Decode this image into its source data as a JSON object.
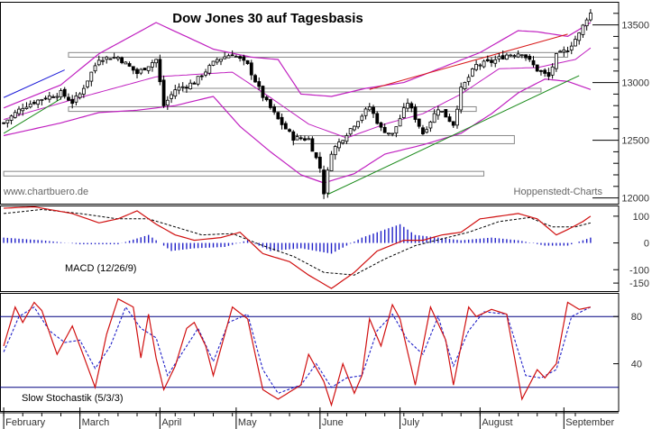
{
  "chart_data": [
    {
      "type": "ohlc",
      "title": "Dow Jones 30 auf Tagesbasis",
      "credits": {
        "left": "www.chartbuero.de",
        "right": "Hoppenstedt-Charts"
      },
      "y_ticks": [
        12000,
        12500,
        13000,
        13500
      ],
      "y_tick_labels": [
        "12000",
        "12500",
        "13000",
        "13500"
      ],
      "ylim": [
        11950,
        13700
      ],
      "months": [
        "February",
        "March",
        "April",
        "May",
        "June",
        "July",
        "August",
        "September"
      ],
      "x_ticks_day": [
        0,
        20,
        41,
        61,
        83,
        104,
        125,
        147
      ],
      "n_days": 155,
      "anchors": [
        [
          0,
          12650
        ],
        [
          5,
          12790
        ],
        [
          10,
          12860
        ],
        [
          15,
          12910
        ],
        [
          18,
          12830
        ],
        [
          20,
          12900
        ],
        [
          25,
          13210
        ],
        [
          30,
          13220
        ],
        [
          35,
          13080
        ],
        [
          40,
          13200
        ],
        [
          42,
          12800
        ],
        [
          45,
          12940
        ],
        [
          50,
          13000
        ],
        [
          56,
          13200
        ],
        [
          60,
          13250
        ],
        [
          64,
          13150
        ],
        [
          68,
          12880
        ],
        [
          72,
          12680
        ],
        [
          76,
          12520
        ],
        [
          80,
          12510
        ],
        [
          83,
          12260
        ],
        [
          84,
          12050
        ],
        [
          86,
          12400
        ],
        [
          90,
          12560
        ],
        [
          93,
          12680
        ],
        [
          96,
          12790
        ],
        [
          99,
          12600
        ],
        [
          102,
          12550
        ],
        [
          106,
          12830
        ],
        [
          110,
          12560
        ],
        [
          114,
          12780
        ],
        [
          118,
          12640
        ],
        [
          120,
          12940
        ],
        [
          124,
          13150
        ],
        [
          128,
          13180
        ],
        [
          132,
          13240
        ],
        [
          136,
          13260
        ],
        [
          140,
          13110
        ],
        [
          143,
          13050
        ],
        [
          145,
          13230
        ],
        [
          148,
          13290
        ],
        [
          151,
          13420
        ],
        [
          153,
          13560
        ],
        [
          154,
          13600
        ]
      ],
      "bollinger_center": [
        [
          0,
          12680
        ],
        [
          20,
          12870
        ],
        [
          40,
          13050
        ],
        [
          60,
          13090
        ],
        [
          70,
          12870
        ],
        [
          80,
          12640
        ],
        [
          90,
          12520
        ],
        [
          100,
          12640
        ],
        [
          110,
          12730
        ],
        [
          120,
          12900
        ],
        [
          130,
          13120
        ],
        [
          140,
          13130
        ],
        [
          150,
          13200
        ],
        [
          154,
          13300
        ]
      ],
      "bollinger_upper": [
        [
          0,
          12780
        ],
        [
          15,
          12980
        ],
        [
          25,
          13250
        ],
        [
          40,
          13520
        ],
        [
          55,
          13290
        ],
        [
          65,
          13220
        ],
        [
          72,
          13200
        ],
        [
          78,
          12900
        ],
        [
          86,
          12880
        ],
        [
          95,
          12950
        ],
        [
          105,
          13000
        ],
        [
          115,
          13130
        ],
        [
          125,
          13260
        ],
        [
          135,
          13450
        ],
        [
          140,
          13440
        ],
        [
          148,
          13400
        ],
        [
          154,
          13520
        ]
      ],
      "bollinger_lower": [
        [
          0,
          12540
        ],
        [
          15,
          12650
        ],
        [
          25,
          12740
        ],
        [
          35,
          12760
        ],
        [
          45,
          12800
        ],
        [
          55,
          12880
        ],
        [
          62,
          12620
        ],
        [
          70,
          12400
        ],
        [
          78,
          12200
        ],
        [
          84,
          12130
        ],
        [
          92,
          12210
        ],
        [
          100,
          12380
        ],
        [
          110,
          12460
        ],
        [
          120,
          12560
        ],
        [
          128,
          12730
        ],
        [
          135,
          12910
        ],
        [
          142,
          13030
        ],
        [
          148,
          13010
        ],
        [
          154,
          12940
        ]
      ],
      "trendlines": [
        {
          "color": "#1a1ad8",
          "points": [
            [
              0,
              12870
            ],
            [
              16,
              13110
            ]
          ]
        },
        {
          "color": "#1a8a1a",
          "points": [
            [
              0,
              12560
            ],
            [
              15,
              12860
            ]
          ]
        },
        {
          "color": "#d81a1a",
          "points": [
            [
              96,
              12940
            ],
            [
              148,
              13420
            ]
          ]
        },
        {
          "color": "#1a8a1a",
          "points": [
            [
              85,
              12030
            ],
            [
              151,
              13060
            ]
          ]
        }
      ],
      "boxes": [
        {
          "d0": 17,
          "d1": 148,
          "v0": 13220,
          "v1": 13260
        },
        {
          "d0": 17,
          "d1": 124,
          "v0": 12750,
          "v1": 12790
        },
        {
          "d0": 47,
          "d1": 141,
          "v0": 12950,
          "v1": 12920
        },
        {
          "d0": 76,
          "d1": 134,
          "v0": 12540,
          "v1": 12470
        },
        {
          "d0": 0,
          "d1": 126,
          "v0": 12230,
          "v1": 12190
        }
      ]
    },
    {
      "type": "line",
      "label": "MACD (12/26/9)",
      "y_ticks": [
        100,
        0,
        -100,
        -150
      ],
      "y_tick_labels": [
        "100",
        "0",
        "-100",
        "-150"
      ],
      "ylim": [
        -180,
        140
      ],
      "macd": [
        [
          0,
          130
        ],
        [
          8,
          135
        ],
        [
          18,
          110
        ],
        [
          25,
          75
        ],
        [
          30,
          90
        ],
        [
          35,
          120
        ],
        [
          40,
          70
        ],
        [
          45,
          30
        ],
        [
          50,
          10
        ],
        [
          57,
          20
        ],
        [
          62,
          40
        ],
        [
          68,
          -40
        ],
        [
          75,
          -70
        ],
        [
          80,
          -120
        ],
        [
          86,
          -170
        ],
        [
          92,
          -110
        ],
        [
          98,
          -30
        ],
        [
          105,
          10
        ],
        [
          110,
          10
        ],
        [
          115,
          30
        ],
        [
          120,
          40
        ],
        [
          125,
          90
        ],
        [
          135,
          110
        ],
        [
          140,
          90
        ],
        [
          145,
          30
        ],
        [
          148,
          50
        ],
        [
          152,
          80
        ],
        [
          154,
          100
        ]
      ],
      "signal": [
        [
          0,
          110
        ],
        [
          10,
          125
        ],
        [
          20,
          110
        ],
        [
          30,
          90
        ],
        [
          38,
          90
        ],
        [
          45,
          60
        ],
        [
          52,
          30
        ],
        [
          60,
          35
        ],
        [
          68,
          -10
        ],
        [
          76,
          -50
        ],
        [
          84,
          -110
        ],
        [
          92,
          -120
        ],
        [
          100,
          -60
        ],
        [
          108,
          -10
        ],
        [
          115,
          15
        ],
        [
          122,
          40
        ],
        [
          130,
          80
        ],
        [
          138,
          95
        ],
        [
          144,
          60
        ],
        [
          150,
          60
        ],
        [
          154,
          75
        ]
      ],
      "histogram": [
        [
          0,
          20
        ],
        [
          10,
          10
        ],
        [
          20,
          -5
        ],
        [
          30,
          -5
        ],
        [
          38,
          30
        ],
        [
          44,
          -30
        ],
        [
          50,
          -20
        ],
        [
          58,
          -15
        ],
        [
          64,
          10
        ],
        [
          70,
          -30
        ],
        [
          78,
          -20
        ],
        [
          86,
          -40
        ],
        [
          94,
          20
        ],
        [
          100,
          50
        ],
        [
          104,
          70
        ],
        [
          108,
          30
        ],
        [
          114,
          20
        ],
        [
          120,
          10
        ],
        [
          128,
          20
        ],
        [
          135,
          10
        ],
        [
          142,
          -10
        ],
        [
          148,
          -10
        ],
        [
          154,
          20
        ]
      ]
    },
    {
      "type": "line",
      "label": "Slow Stochastik (5/3/3)",
      "y_ticks": [
        80,
        40
      ],
      "y_tick_labels": [
        "80",
        "40"
      ],
      "ylim": [
        0,
        100
      ],
      "hlines": [
        80,
        20
      ],
      "k": [
        [
          0,
          55
        ],
        [
          3,
          88
        ],
        [
          5,
          75
        ],
        [
          8,
          92
        ],
        [
          10,
          85
        ],
        [
          14,
          48
        ],
        [
          18,
          72
        ],
        [
          20,
          55
        ],
        [
          24,
          20
        ],
        [
          27,
          65
        ],
        [
          30,
          95
        ],
        [
          34,
          88
        ],
        [
          36,
          45
        ],
        [
          38,
          82
        ],
        [
          40,
          45
        ],
        [
          42,
          18
        ],
        [
          45,
          38
        ],
        [
          48,
          70
        ],
        [
          50,
          75
        ],
        [
          53,
          55
        ],
        [
          55,
          30
        ],
        [
          60,
          88
        ],
        [
          64,
          78
        ],
        [
          68,
          18
        ],
        [
          72,
          10
        ],
        [
          78,
          22
        ],
        [
          80,
          48
        ],
        [
          84,
          25
        ],
        [
          86,
          5
        ],
        [
          89,
          40
        ],
        [
          92,
          15
        ],
        [
          94,
          30
        ],
        [
          96,
          78
        ],
        [
          99,
          55
        ],
        [
          102,
          90
        ],
        [
          104,
          78
        ],
        [
          108,
          22
        ],
        [
          112,
          88
        ],
        [
          116,
          60
        ],
        [
          118,
          22
        ],
        [
          122,
          88
        ],
        [
          124,
          80
        ],
        [
          128,
          86
        ],
        [
          132,
          82
        ],
        [
          136,
          10
        ],
        [
          140,
          35
        ],
        [
          142,
          28
        ],
        [
          145,
          40
        ],
        [
          148,
          92
        ],
        [
          151,
          86
        ],
        [
          154,
          88
        ]
      ],
      "d": [
        [
          0,
          50
        ],
        [
          4,
          80
        ],
        [
          8,
          88
        ],
        [
          12,
          68
        ],
        [
          16,
          58
        ],
        [
          20,
          60
        ],
        [
          24,
          36
        ],
        [
          28,
          55
        ],
        [
          32,
          88
        ],
        [
          36,
          70
        ],
        [
          40,
          62
        ],
        [
          43,
          30
        ],
        [
          47,
          50
        ],
        [
          51,
          70
        ],
        [
          55,
          42
        ],
        [
          59,
          75
        ],
        [
          64,
          82
        ],
        [
          68,
          35
        ],
        [
          72,
          15
        ],
        [
          78,
          22
        ],
        [
          82,
          40
        ],
        [
          86,
          20
        ],
        [
          90,
          28
        ],
        [
          94,
          30
        ],
        [
          98,
          68
        ],
        [
          102,
          82
        ],
        [
          106,
          60
        ],
        [
          110,
          48
        ],
        [
          114,
          80
        ],
        [
          118,
          38
        ],
        [
          122,
          68
        ],
        [
          126,
          84
        ],
        [
          132,
          82
        ],
        [
          137,
          30
        ],
        [
          141,
          28
        ],
        [
          145,
          35
        ],
        [
          149,
          80
        ],
        [
          154,
          88
        ]
      ]
    }
  ]
}
